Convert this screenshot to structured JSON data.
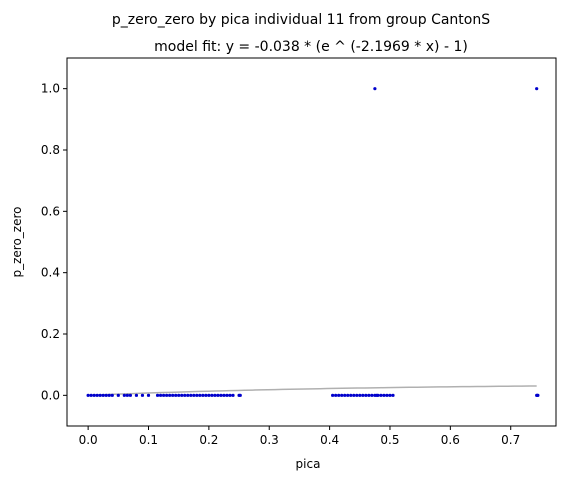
{
  "chart_data": {
    "type": "scatter",
    "title": "p_zero_zero by pica individual 11 from group CantonS",
    "subtitle": "model fit: y = -0.038 * (e ^ (-2.1969 * x) - 1)",
    "xlabel": "pica",
    "ylabel": "p_zero_zero",
    "xlim": [
      -0.035,
      0.775
    ],
    "ylim": [
      -0.1,
      1.1
    ],
    "xticks": [
      0.0,
      0.1,
      0.2,
      0.3,
      0.4,
      0.5,
      0.6,
      0.7
    ],
    "xtick_labels": [
      "0.0",
      "0.1",
      "0.2",
      "0.3",
      "0.4",
      "0.5",
      "0.6",
      "0.7"
    ],
    "yticks": [
      0.0,
      0.2,
      0.4,
      0.6,
      0.8,
      1.0
    ],
    "ytick_labels": [
      "0.0",
      "0.2",
      "0.4",
      "0.6",
      "0.8",
      "1.0"
    ],
    "grid": false,
    "series": [
      {
        "kind": "points",
        "color": "#0000cc",
        "x": [
          0.0,
          0.005,
          0.01,
          0.015,
          0.02,
          0.025,
          0.03,
          0.035,
          0.04,
          0.05,
          0.06,
          0.065,
          0.07,
          0.08,
          0.09,
          0.1,
          0.115,
          0.12,
          0.125,
          0.13,
          0.135,
          0.14,
          0.145,
          0.15,
          0.155,
          0.16,
          0.165,
          0.17,
          0.175,
          0.18,
          0.185,
          0.19,
          0.195,
          0.2,
          0.205,
          0.21,
          0.215,
          0.22,
          0.225,
          0.23,
          0.235,
          0.24,
          0.25,
          0.252,
          0.405,
          0.41,
          0.415,
          0.42,
          0.425,
          0.43,
          0.435,
          0.44,
          0.445,
          0.45,
          0.455,
          0.46,
          0.465,
          0.47,
          0.475,
          0.478,
          0.48,
          0.485,
          0.49,
          0.495,
          0.5,
          0.505,
          0.475,
          0.743,
          0.744,
          0.745,
          0.743
        ],
        "y": [
          0,
          0,
          0,
          0,
          0,
          0,
          0,
          0,
          0,
          0,
          0,
          0,
          0,
          0,
          0,
          0,
          0,
          0,
          0,
          0,
          0,
          0,
          0,
          0,
          0,
          0,
          0,
          0,
          0,
          0,
          0,
          0,
          0,
          0,
          0,
          0,
          0,
          0,
          0,
          0,
          0,
          0,
          0,
          0,
          0,
          0,
          0,
          0,
          0,
          0,
          0,
          0,
          0,
          0,
          0,
          0,
          0,
          0,
          0,
          0,
          0,
          0,
          0,
          0,
          0,
          0,
          1,
          0,
          0,
          0,
          1
        ]
      },
      {
        "kind": "fit-line",
        "color": "#b0b0b0",
        "model": {
          "a": -0.038,
          "b": -2.1969
        },
        "x_range": [
          0.0,
          0.743
        ]
      }
    ]
  }
}
